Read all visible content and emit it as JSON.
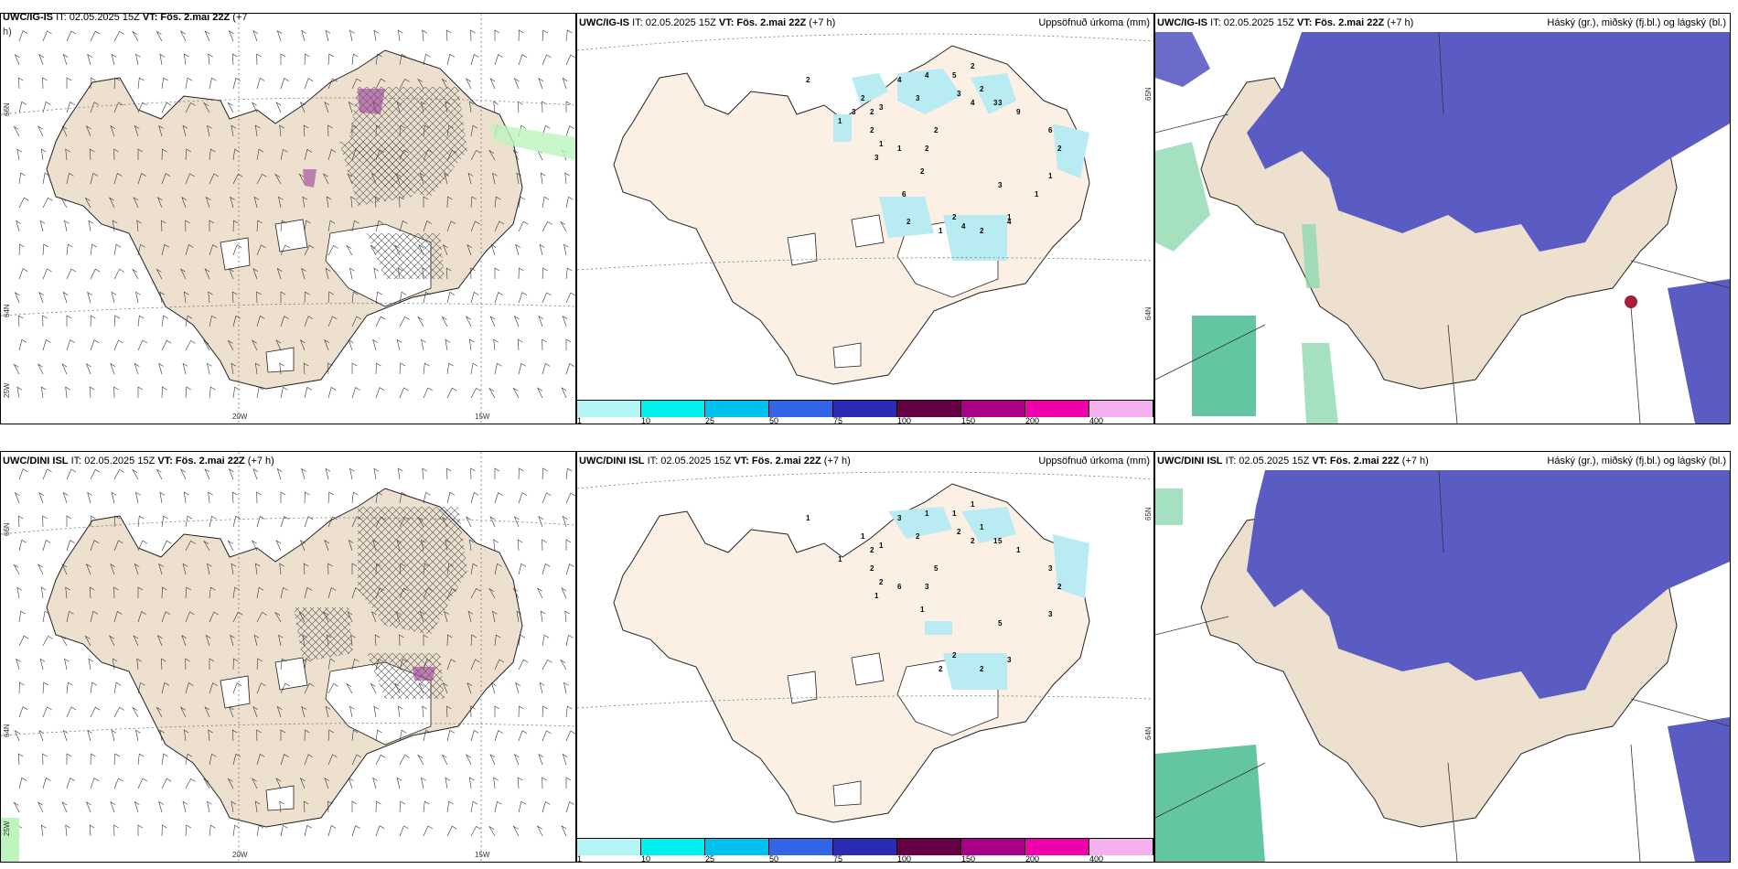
{
  "rows": [
    {
      "wind": {
        "header": {
          "model": "UWC/IG-IS",
          "it": "IT: 02.05.2025 15Z",
          "vt": "VT: Fös. 2.mai 22Z",
          "lead": "(+7",
          "lead2": "h)"
        },
        "lon_labels": [
          "20W",
          "15W"
        ],
        "lat_labels": [
          "66N",
          "64N",
          "25W"
        ]
      },
      "precip": {
        "header": {
          "model": "UWC/IG-IS",
          "it": "IT: 02.05.2025 15Z",
          "vt": "VT: Fös. 2.mai 22Z",
          "lead": "(+7 h)",
          "field": "Uppsöfnuð úrkoma (mm)"
        },
        "lat_labels": [
          "65N",
          "64N"
        ],
        "values": [
          "2",
          "4",
          "2",
          "3",
          "2",
          "1",
          "2",
          "4",
          "3",
          "2",
          "2",
          "5",
          "3",
          "4",
          "3",
          "1",
          "3",
          "1",
          "2",
          "2",
          "2",
          "3",
          "9",
          "6",
          "2",
          "1",
          "3",
          "2",
          "1",
          "4",
          "2",
          "1",
          "3",
          "6",
          "2",
          "4",
          "1"
        ]
      },
      "cloud": {
        "header": {
          "model": "UWC/IG-IS",
          "it": "IT: 02.05.2025 15Z",
          "vt": "VT: Fös. 2.mai 22Z",
          "lead": "(+7 h)",
          "field": "Háský (gr.), miðský (fj.bl.) og lágský (bl.)"
        }
      }
    },
    {
      "wind": {
        "header": {
          "model": "UWC/DINI ISL",
          "it": "IT: 02.05.2025 15Z",
          "vt": "VT: Fös. 2.mai 22Z",
          "lead": "(+7 h)"
        },
        "lon_labels": [
          "20W",
          "15W"
        ],
        "lat_labels": [
          "66N",
          "64N",
          "25W"
        ]
      },
      "precip": {
        "header": {
          "model": "UWC/DINI ISL",
          "it": "IT: 02.05.2025 15Z",
          "vt": "VT: Fös. 2.mai 22Z",
          "lead": "(+7 h)",
          "field": "Uppsöfnuð úrkoma (mm)"
        },
        "lat_labels": [
          "65N",
          "64N"
        ],
        "values": [
          "1",
          "3",
          "1",
          "1",
          "2",
          "1",
          "2",
          "1",
          "2",
          "1",
          "1",
          "1",
          "2",
          "2",
          "1",
          "2",
          "1",
          "6",
          "5",
          "3",
          "1",
          "5",
          "1",
          "3",
          "2",
          "3",
          "5",
          "2",
          "2",
          "3",
          "2"
        ]
      },
      "cloud": {
        "header": {
          "model": "UWC/DINI ISL",
          "it": "IT: 02.05.2025 15Z",
          "vt": "VT: Fös. 2.mai 22Z",
          "lead": "(+7 h)",
          "field": "Háský (gr.), miðský (fj.bl.) og lágský (bl.)"
        }
      }
    }
  ],
  "legend": {
    "ticks": [
      "1",
      "10",
      "25",
      "50",
      "75",
      "100",
      "150",
      "200",
      "400"
    ],
    "colors": [
      "#b3f5f5",
      "#00eeee",
      "#00c0ee",
      "#3366e6",
      "#2a2ab3",
      "#660044",
      "#aa0088",
      "#ee00aa",
      "#f5b0f0"
    ]
  },
  "colors": {
    "land": "#ede0cf",
    "land_light": "#fcefe3",
    "sea": "#ffffff",
    "high_cloud": "#5b5bc4",
    "precip_cyan": "#b8ecf2"
  }
}
